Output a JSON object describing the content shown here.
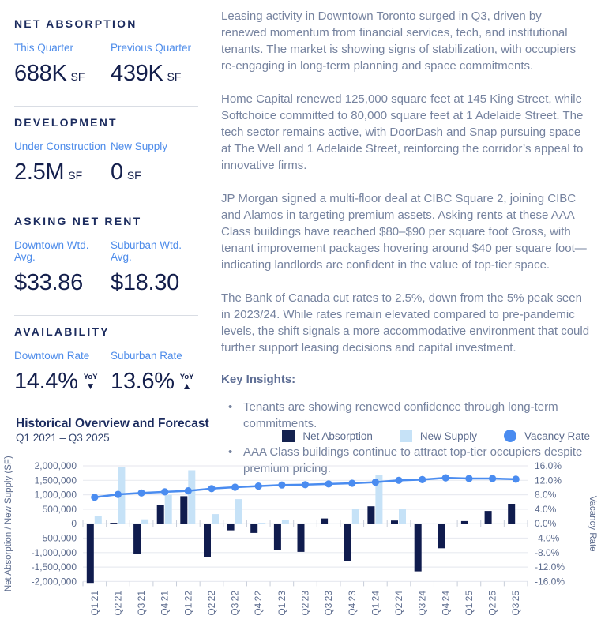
{
  "colors": {
    "heading_navy": "#1b2b5e",
    "value_navy": "#141f4c",
    "label_blue": "#4e8cea",
    "body_text": "#76839f",
    "bar_navy": "#101c4e",
    "bar_light_blue": "#c6e2f7",
    "line_blue": "#4a8cf0",
    "divider": "#d9dde4",
    "gridline": "#e9ebf1",
    "tick_text": "#5d6c8e"
  },
  "sidebar": {
    "sections": [
      {
        "title": "NET ABSORPTION",
        "stats": [
          {
            "label": "This Quarter",
            "value": "688K",
            "unit": "SF"
          },
          {
            "label": "Previous Quarter",
            "value": "439K",
            "unit": "SF"
          }
        ]
      },
      {
        "title": "DEVELOPMENT",
        "stats": [
          {
            "label": "Under Construction",
            "value": "2.5M",
            "unit": "SF"
          },
          {
            "label": "New Supply",
            "value": "0",
            "unit": "SF"
          }
        ]
      },
      {
        "title": "ASKING NET RENT",
        "stats": [
          {
            "label": "Downtown Wtd. Avg.",
            "value": "$33.86"
          },
          {
            "label": "Suburban Wtd. Avg.",
            "value": "$18.30"
          }
        ]
      },
      {
        "title": "AVAILABILITY",
        "stats": [
          {
            "label": "Downtown Rate",
            "value": "14.4%",
            "trend_label": "YoY",
            "trend_direction": "down",
            "arrow": "▼"
          },
          {
            "label": "Suburban Rate",
            "value": "13.6%",
            "trend_label": "YoY",
            "trend_direction": "up",
            "arrow": "▲"
          }
        ]
      }
    ]
  },
  "article": {
    "paragraphs": [
      "Leasing activity in Downtown Toronto surged in Q3, driven by renewed momentum from financial services, tech, and institutional tenants. The market is showing signs of stabilization, with occupiers re-engaging in long-term planning and space commitments.",
      "Home Capital renewed 125,000 square feet at 145 King Street, while Softchoice committed to 80,000 square feet at 1 Adelaide Street. The tech sector remains active, with DoorDash and Snap pursuing space at The Well and 1 Adelaide Street, reinforcing the corridor’s appeal to innovative firms.",
      "JP Morgan signed a multi-floor deal at CIBC Square 2, joining CIBC and Alamos in targeting premium assets. Asking rents at these AAA Class buildings have reached $80–$90 per square foot Gross, with tenant improvement packages hovering around $40 per square foot—indicating landlords are confident in the value of top-tier space.",
      "The Bank of Canada cut rates to 2.5%, down from the 5% peak seen in 2023/24. While rates remain elevated compared to pre-pandemic levels, the shift signals a more accommodative environment that could further support leasing decisions and capital investment."
    ],
    "insights_title": "Key Insights:",
    "insights": [
      "Tenants are showing renewed confidence through long-term commitments.",
      "AAA Class buildings continue to attract top-tier occupiers despite premium pricing."
    ]
  },
  "chart": {
    "title": "Historical Overview and Forecast",
    "subtitle": "Q1 2021 – Q3 2025",
    "legend": [
      {
        "label": "Net Absorption",
        "swatch": "square",
        "color": "#14224f"
      },
      {
        "label": "New Supply",
        "swatch": "square",
        "color": "#c6e2f7"
      },
      {
        "label": "Vacancy Rate",
        "swatch": "circle",
        "color": "#4a8cf0"
      }
    ]
  },
  "chart_data": {
    "type": "bar+line combo",
    "title": "Historical Overview and Forecast",
    "subtitle": "Q1 2021 – Q3 2025",
    "categories": [
      "Q1'21",
      "Q2'21",
      "Q3'21",
      "Q4'21",
      "Q1'22",
      "Q2'22",
      "Q3'22",
      "Q4'22",
      "Q1'23",
      "Q2'23",
      "Q3'23",
      "Q4'23",
      "Q1'24",
      "Q2'24",
      "Q3'24",
      "Q4'24",
      "Q1'25",
      "Q2'25",
      "Q3'25"
    ],
    "series": [
      {
        "name": "Net Absorption",
        "type": "bar",
        "axis": "left",
        "color": "#101c4e",
        "values": [
          -2050000,
          30000,
          -1050000,
          650000,
          950000,
          -1150000,
          -230000,
          -320000,
          -900000,
          -975000,
          180000,
          -1300000,
          600000,
          110000,
          -1650000,
          -850000,
          90000,
          439000,
          688000
        ]
      },
      {
        "name": "New Supply",
        "type": "bar",
        "axis": "left",
        "color": "#c6e2f7",
        "values": [
          250000,
          1950000,
          150000,
          1000000,
          1850000,
          330000,
          850000,
          30000,
          130000,
          0,
          0,
          500000,
          1700000,
          520000,
          0,
          0,
          0,
          0,
          0
        ]
      },
      {
        "name": "Vacancy Rate",
        "type": "line",
        "axis": "right",
        "color": "#4a8cf0",
        "values": [
          7.3,
          8.1,
          8.5,
          8.8,
          9.1,
          9.7,
          10.1,
          10.4,
          10.7,
          10.8,
          11.0,
          11.2,
          11.5,
          12.0,
          12.2,
          12.7,
          12.5,
          12.5,
          12.3
        ]
      }
    ],
    "ylabel_left": "Net Absorption / New Supply (SF)",
    "ylabel_right": "Vacancy Rate",
    "ylim_left": [
      -2000000,
      2000000
    ],
    "ylim_right": [
      -16,
      16
    ],
    "yticks_left": [
      "2,000,000",
      "1,500,000",
      "1,000,000",
      "500,000",
      "0",
      "-500,000",
      "-1,000,000",
      "-1,500,000",
      "-2,000,000"
    ],
    "yticks_right": [
      "16.0%",
      "12.0%",
      "8.0%",
      "4.0%",
      "0.0%",
      "-4.0%",
      "-8.0%",
      "-12.0%",
      "-16.0%"
    ],
    "grid": "horizontal",
    "legend_position": "top-right"
  }
}
